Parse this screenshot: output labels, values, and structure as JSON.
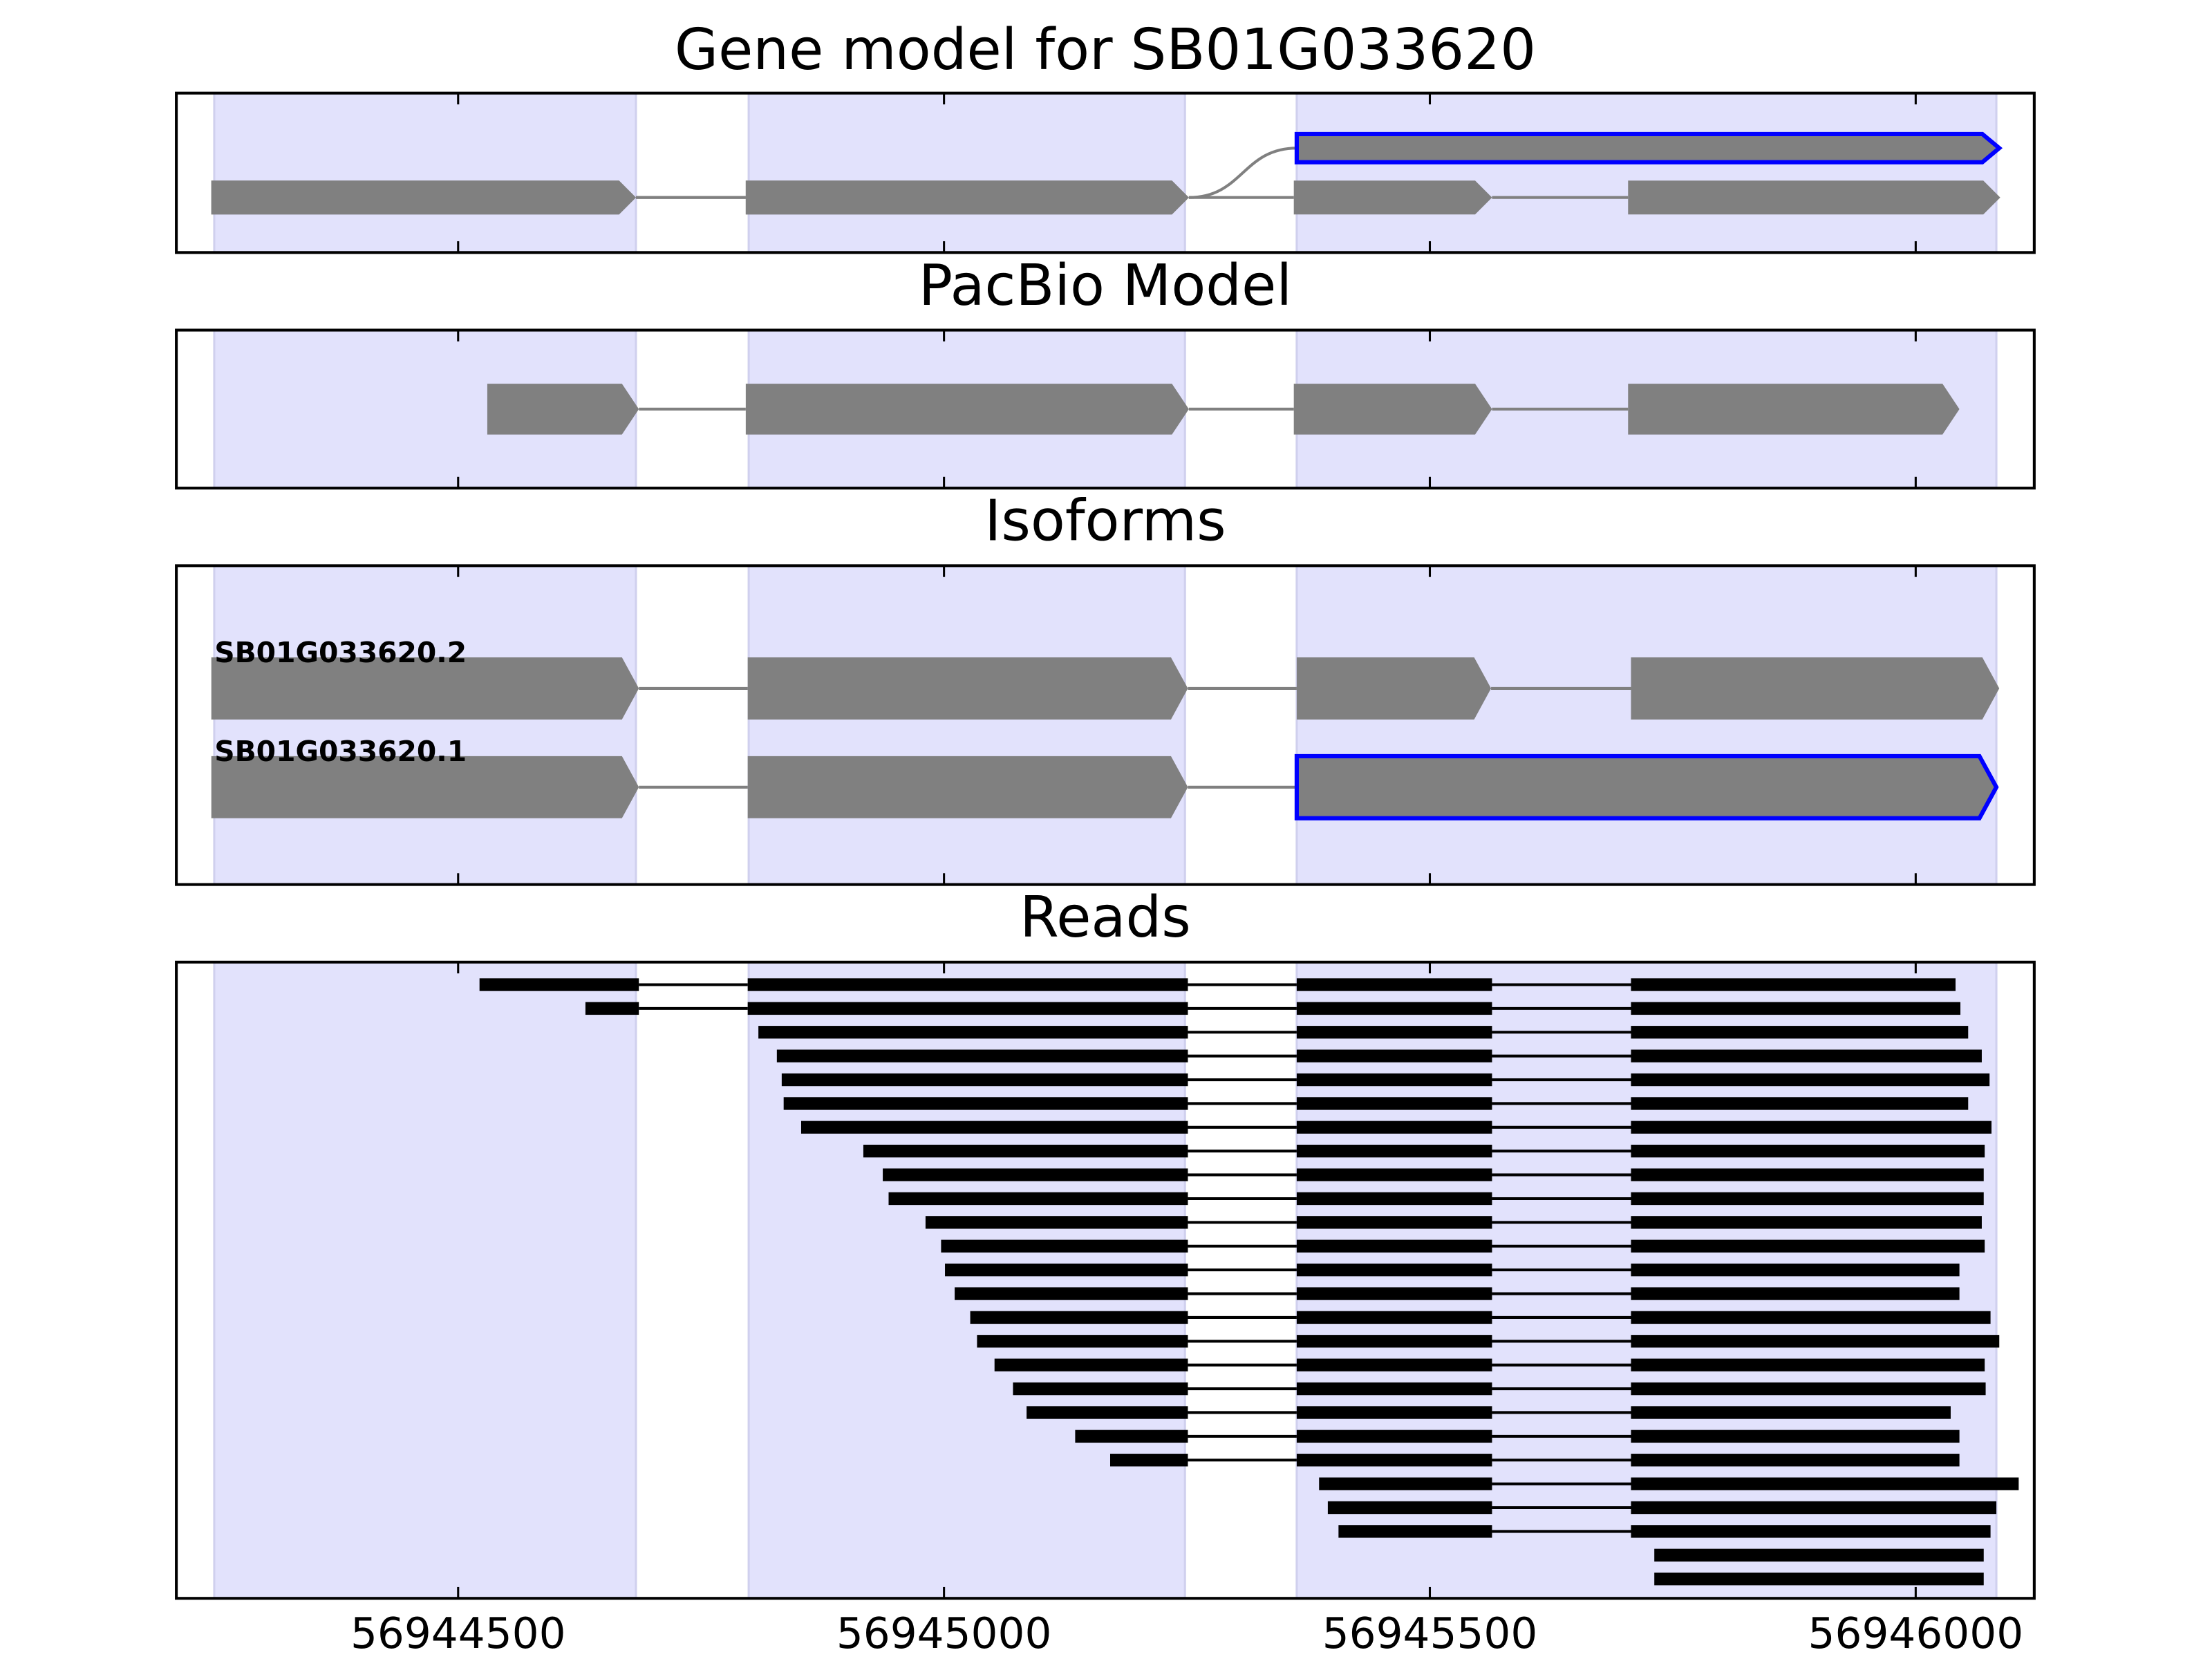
{
  "x_axis": {
    "xlim": [
      56944210,
      56946122
    ],
    "xticks": [
      56944500,
      56945000,
      56945500,
      56946000
    ],
    "shaded_regions": [
      [
        56944249,
        56944683
      ],
      [
        56944799,
        56945248
      ],
      [
        56945363,
        56946083
      ]
    ],
    "shade_color": "#e2e2fc"
  },
  "chart_data": [
    {
      "type": "gene-model",
      "title": "Gene model for SB01G033620",
      "color": "#808080",
      "transcripts": [
        {
          "exons": [
            {
              "start": 56944246,
              "end": 56944683
            },
            {
              "start": 56944796,
              "end": 56945252
            },
            {
              "start": 56945360,
              "end": 56945564
            },
            {
              "start": 56945704,
              "end": 56946087
            }
          ]
        },
        {
          "exons": [
            {
              "start": 56944246,
              "end": 56944683
            },
            {
              "start": 56944796,
              "end": 56945252
            },
            {
              "start": 56945363,
              "end": 56946086,
              "edgecolor": "#0000ff"
            }
          ]
        }
      ]
    },
    {
      "type": "gene-model",
      "title": "PacBio Model",
      "color": "#808080",
      "transcripts": [
        {
          "exons": [
            {
              "start": 56944530,
              "end": 56944686
            },
            {
              "start": 56944796,
              "end": 56945252
            },
            {
              "start": 56945360,
              "end": 56945564
            },
            {
              "start": 56945704,
              "end": 56946045
            }
          ]
        }
      ]
    },
    {
      "type": "isoforms",
      "title": "Isoforms",
      "color": "#808080",
      "transcripts": [
        {
          "name": "SB01G033620.2",
          "exons": [
            {
              "start": 56944246,
              "end": 56944686
            },
            {
              "start": 56944798,
              "end": 56945251
            },
            {
              "start": 56945363,
              "end": 56945563
            },
            {
              "start": 56945707,
              "end": 56946086
            }
          ]
        },
        {
          "name": "SB01G033620.1",
          "exons": [
            {
              "start": 56944246,
              "end": 56944686
            },
            {
              "start": 56944798,
              "end": 56945251
            },
            {
              "start": 56945363,
              "end": 56946083,
              "edgecolor": "#0000ff"
            }
          ]
        }
      ]
    },
    {
      "type": "reads",
      "title": "Reads",
      "color": "#000000",
      "reads": [
        [
          [
            56944522,
            56944686
          ],
          [
            56944798,
            56945251
          ],
          [
            56945363,
            56945564
          ],
          [
            56945707,
            56946041
          ]
        ],
        [
          [
            56944631,
            56944686
          ],
          [
            56944798,
            56945251
          ],
          [
            56945363,
            56945564
          ],
          [
            56945707,
            56946046
          ]
        ],
        [
          [
            56944809,
            56945251
          ],
          [
            56945363,
            56945564
          ],
          [
            56945707,
            56946054
          ]
        ],
        [
          [
            56944828,
            56945251
          ],
          [
            56945363,
            56945564
          ],
          [
            56945707,
            56946068
          ]
        ],
        [
          [
            56944833,
            56945251
          ],
          [
            56945363,
            56945564
          ],
          [
            56945707,
            56946076
          ]
        ],
        [
          [
            56944835,
            56945251
          ],
          [
            56945363,
            56945564
          ],
          [
            56945707,
            56946054
          ]
        ],
        [
          [
            56944853,
            56945251
          ],
          [
            56945363,
            56945564
          ],
          [
            56945707,
            56946078
          ]
        ],
        [
          [
            56944917,
            56945251
          ],
          [
            56945363,
            56945564
          ],
          [
            56945707,
            56946071
          ]
        ],
        [
          [
            56944937,
            56945251
          ],
          [
            56945363,
            56945564
          ],
          [
            56945707,
            56946070
          ]
        ],
        [
          [
            56944943,
            56945251
          ],
          [
            56945363,
            56945564
          ],
          [
            56945707,
            56946070
          ]
        ],
        [
          [
            56944981,
            56945251
          ],
          [
            56945363,
            56945564
          ],
          [
            56945707,
            56946068
          ]
        ],
        [
          [
            56944997,
            56945251
          ],
          [
            56945363,
            56945564
          ],
          [
            56945707,
            56946071
          ]
        ],
        [
          [
            56945001,
            56945251
          ],
          [
            56945363,
            56945564
          ],
          [
            56945707,
            56946045
          ]
        ],
        [
          [
            56945011,
            56945251
          ],
          [
            56945363,
            56945564
          ],
          [
            56945707,
            56946045
          ]
        ],
        [
          [
            56945027,
            56945251
          ],
          [
            56945363,
            56945564
          ],
          [
            56945707,
            56946077
          ]
        ],
        [
          [
            56945034,
            56945251
          ],
          [
            56945363,
            56945564
          ],
          [
            56945707,
            56946086
          ]
        ],
        [
          [
            56945052,
            56945251
          ],
          [
            56945363,
            56945564
          ],
          [
            56945707,
            56946071
          ]
        ],
        [
          [
            56945071,
            56945251
          ],
          [
            56945363,
            56945564
          ],
          [
            56945707,
            56946072
          ]
        ],
        [
          [
            56945085,
            56945251
          ],
          [
            56945363,
            56945564
          ],
          [
            56945707,
            56946036
          ]
        ],
        [
          [
            56945135,
            56945251
          ],
          [
            56945363,
            56945564
          ],
          [
            56945707,
            56946045
          ]
        ],
        [
          [
            56945171,
            56945251
          ],
          [
            56945363,
            56945564
          ],
          [
            56945707,
            56946045
          ]
        ],
        [
          [
            56945386,
            56945564
          ],
          [
            56945707,
            56946106
          ]
        ],
        [
          [
            56945395,
            56945564
          ],
          [
            56945707,
            56946083
          ]
        ],
        [
          [
            56945406,
            56945564
          ],
          [
            56945707,
            56946077
          ]
        ],
        [
          [
            56945731,
            56946070
          ]
        ],
        [
          [
            56945731,
            56946070
          ]
        ]
      ]
    }
  ]
}
